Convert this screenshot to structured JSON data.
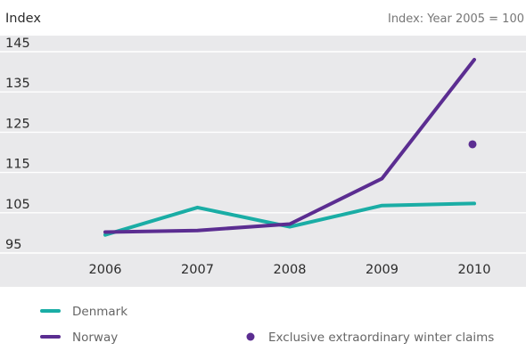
{
  "chart_data": {
    "type": "line",
    "ylabel": "Index",
    "note": "Index: Year 2005 = 100",
    "x": [
      "2006",
      "2007",
      "2008",
      "2009",
      "2010"
    ],
    "yticks": [
      95,
      105,
      115,
      125,
      135,
      145
    ],
    "ylim": [
      94.5,
      145
    ],
    "grid": true,
    "legend_position": "bottom-left",
    "series": [
      {
        "name": "Denmark",
        "color": "#1aada5",
        "values": [
          99.5,
          106.3,
          101.5,
          106.8,
          107.3
        ]
      },
      {
        "name": "Norway",
        "color": "#5b2d91",
        "values": [
          100.2,
          100.6,
          102.2,
          113.5,
          143
        ]
      }
    ],
    "annotation": {
      "label": "Exclusive extraordinary winter claims",
      "x": "2010",
      "value": 122,
      "color": "#5b2d91"
    }
  }
}
